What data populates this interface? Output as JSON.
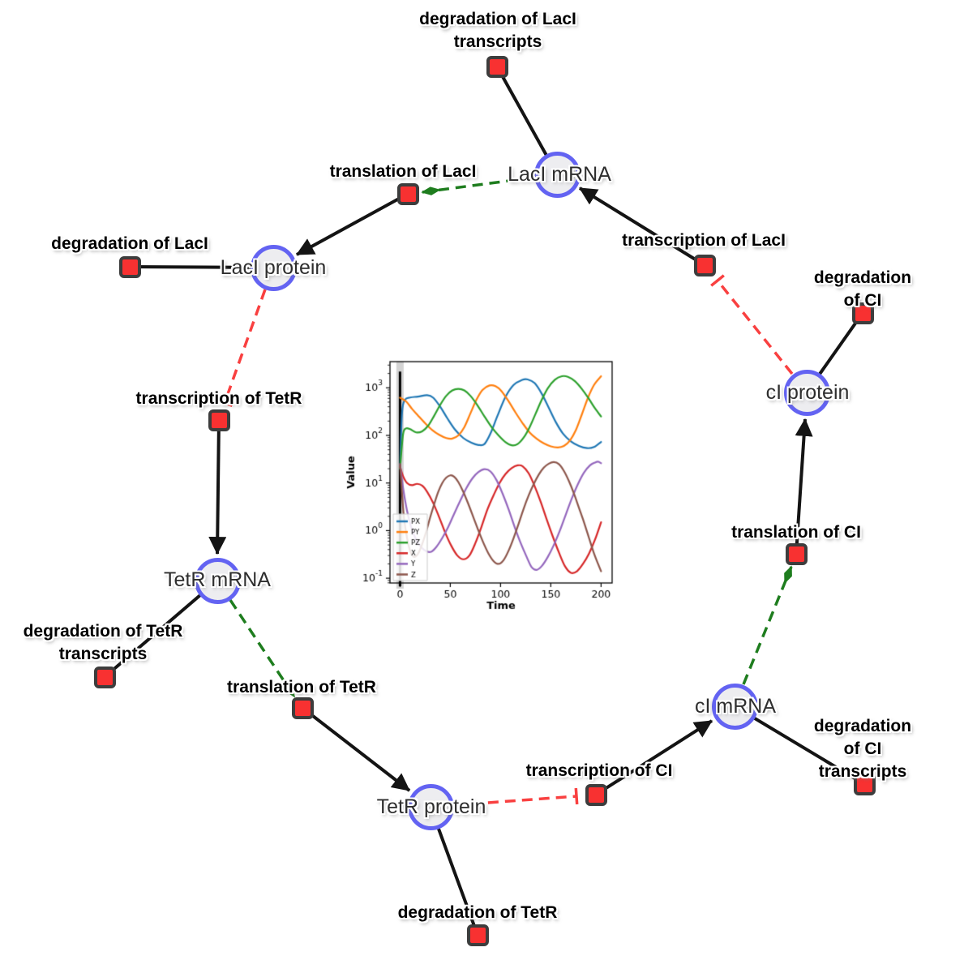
{
  "diagram": {
    "species": [
      {
        "label": "LacI mRNA"
      },
      {
        "label": "LacI protein"
      },
      {
        "label": "TetR mRNA"
      },
      {
        "label": "TetR protein"
      },
      {
        "label": "cI mRNA"
      },
      {
        "label": "cI protein"
      }
    ],
    "reactions": [
      {
        "label": "degradation of LacI\ntranscripts"
      },
      {
        "label": "translation of LacI"
      },
      {
        "label": "transcription of LacI"
      },
      {
        "label": "degradation of LacI"
      },
      {
        "label": "transcription of TetR"
      },
      {
        "label": "degradation of TetR\ntranscripts"
      },
      {
        "label": "translation of TetR"
      },
      {
        "label": "degradation of TetR"
      },
      {
        "label": "transcription of CI"
      },
      {
        "label": "degradation of CI\ntranscripts"
      },
      {
        "label": "translation of CI"
      },
      {
        "label": "degradation of CI"
      }
    ],
    "edges": [
      {
        "source": "LacI mRNA",
        "target": "degradation of LacI transcripts",
        "type": "consumption"
      },
      {
        "source": "LacI mRNA",
        "target": "translation of LacI",
        "type": "modifier"
      },
      {
        "source": "transcription of LacI",
        "target": "LacI mRNA",
        "type": "production"
      },
      {
        "source": "LacI protein",
        "target": "degradation of LacI",
        "type": "consumption"
      },
      {
        "source": "translation of LacI",
        "target": "LacI protein",
        "type": "production"
      },
      {
        "source": "LacI protein",
        "target": "transcription of TetR",
        "type": "inhibition"
      },
      {
        "source": "transcription of TetR",
        "target": "TetR mRNA",
        "type": "production"
      },
      {
        "source": "TetR mRNA",
        "target": "degradation of TetR transcripts",
        "type": "consumption"
      },
      {
        "source": "TetR mRNA",
        "target": "translation of TetR",
        "type": "modifier"
      },
      {
        "source": "translation of TetR",
        "target": "TetR protein",
        "type": "production"
      },
      {
        "source": "TetR protein",
        "target": "degradation of TetR",
        "type": "consumption"
      },
      {
        "source": "TetR protein",
        "target": "transcription of CI",
        "type": "inhibition"
      },
      {
        "source": "transcription of CI",
        "target": "cI mRNA",
        "type": "production"
      },
      {
        "source": "cI mRNA",
        "target": "degradation of CI transcripts",
        "type": "consumption"
      },
      {
        "source": "cI mRNA",
        "target": "translation of CI",
        "type": "modifier"
      },
      {
        "source": "translation of CI",
        "target": "cI protein",
        "type": "production"
      },
      {
        "source": "cI protein",
        "target": "degradation of CI",
        "type": "consumption"
      },
      {
        "source": "cI protein",
        "target": "transcription of LacI",
        "type": "inhibition"
      }
    ],
    "colors": {
      "species_border": "#6363f2",
      "species_fill": "#ededf0",
      "reaction_fill": "#f83131",
      "reaction_border": "#3d3d3d",
      "edge_black": "#141414",
      "edge_modifier_green": "#1e7d1e",
      "edge_inhibition_red": "#f94040"
    }
  },
  "chart_data": {
    "type": "line",
    "title": "",
    "xlabel": "Time",
    "ylabel": "Value",
    "y_scale": "log",
    "axes": {
      "xlim": [
        -10,
        211
      ],
      "ylim_log": [
        -1.1,
        3.55
      ],
      "x_ticks": [
        0,
        50,
        100,
        150,
        200
      ],
      "y_tick_exponents": [
        -1,
        0,
        1,
        2,
        3
      ]
    },
    "legend_position": "lower left",
    "vline": {
      "x": 0,
      "top_value": 2200
    },
    "series": [
      {
        "name": "PX",
        "color": "#1f77b4",
        "points": [
          [
            0,
            20
          ],
          [
            2,
            300
          ],
          [
            5,
            560
          ],
          [
            10,
            625
          ],
          [
            18,
            655
          ],
          [
            27,
            700
          ],
          [
            33,
            620
          ],
          [
            40,
            400
          ],
          [
            47,
            230
          ],
          [
            55,
            130
          ],
          [
            63,
            88
          ],
          [
            71,
            70
          ],
          [
            78,
            63
          ],
          [
            84,
            66
          ],
          [
            90,
            110
          ],
          [
            97,
            260
          ],
          [
            105,
            650
          ],
          [
            113,
            1150
          ],
          [
            121,
            1450
          ],
          [
            127,
            1500
          ],
          [
            134,
            1250
          ],
          [
            141,
            750
          ],
          [
            148,
            380
          ],
          [
            155,
            190
          ],
          [
            162,
            110
          ],
          [
            170,
            75
          ],
          [
            178,
            60
          ],
          [
            186,
            54
          ],
          [
            193,
            57
          ],
          [
            200,
            73
          ]
        ]
      },
      {
        "name": "PY",
        "color": "#ff7f0e",
        "points": [
          [
            0,
            620
          ],
          [
            6,
            520
          ],
          [
            12,
            360
          ],
          [
            18,
            260
          ],
          [
            25,
            180
          ],
          [
            32,
            130
          ],
          [
            39,
            103
          ],
          [
            46,
            88
          ],
          [
            52,
            86
          ],
          [
            58,
            100
          ],
          [
            64,
            150
          ],
          [
            70,
            290
          ],
          [
            76,
            560
          ],
          [
            82,
            900
          ],
          [
            89,
            1120
          ],
          [
            95,
            1080
          ],
          [
            101,
            850
          ],
          [
            108,
            520
          ],
          [
            115,
            300
          ],
          [
            122,
            180
          ],
          [
            129,
            115
          ],
          [
            136,
            85
          ],
          [
            143,
            68
          ],
          [
            150,
            59
          ],
          [
            157,
            56
          ],
          [
            163,
            60
          ],
          [
            169,
            78
          ],
          [
            175,
            130
          ],
          [
            181,
            280
          ],
          [
            187,
            620
          ],
          [
            193,
            1150
          ],
          [
            200,
            1750
          ]
        ]
      },
      {
        "name": "PZ",
        "color": "#2ca02c",
        "points": [
          [
            0,
            20
          ],
          [
            3,
            105
          ],
          [
            6,
            140
          ],
          [
            10,
            135
          ],
          [
            16,
            116
          ],
          [
            22,
            122
          ],
          [
            28,
            160
          ],
          [
            34,
            260
          ],
          [
            40,
            440
          ],
          [
            46,
            680
          ],
          [
            52,
            880
          ],
          [
            58,
            950
          ],
          [
            64,
            880
          ],
          [
            70,
            680
          ],
          [
            77,
            430
          ],
          [
            84,
            250
          ],
          [
            91,
            150
          ],
          [
            98,
            100
          ],
          [
            105,
            72
          ],
          [
            111,
            62
          ],
          [
            117,
            66
          ],
          [
            123,
            90
          ],
          [
            129,
            150
          ],
          [
            135,
            290
          ],
          [
            141,
            560
          ],
          [
            147,
            980
          ],
          [
            154,
            1480
          ],
          [
            161,
            1750
          ],
          [
            167,
            1700
          ],
          [
            174,
            1380
          ],
          [
            181,
            940
          ],
          [
            188,
            580
          ],
          [
            194,
            370
          ],
          [
            200,
            250
          ]
        ]
      },
      {
        "name": "X",
        "color": "#d62728",
        "points": [
          [
            0,
            22
          ],
          [
            3,
            14
          ],
          [
            7,
            10
          ],
          [
            12,
            9
          ],
          [
            17,
            9.6
          ],
          [
            22,
            8.8
          ],
          [
            27,
            6.5
          ],
          [
            33,
            3.8
          ],
          [
            39,
            1.9
          ],
          [
            45,
            0.9
          ],
          [
            51,
            0.48
          ],
          [
            57,
            0.3
          ],
          [
            63,
            0.25
          ],
          [
            69,
            0.3
          ],
          [
            75,
            0.55
          ],
          [
            81,
            1.2
          ],
          [
            87,
            2.8
          ],
          [
            93,
            5.5
          ],
          [
            99,
            10
          ],
          [
            105,
            15.5
          ],
          [
            111,
            20.5
          ],
          [
            117,
            23.5
          ],
          [
            122,
            22.5
          ],
          [
            128,
            16
          ],
          [
            134,
            8.5
          ],
          [
            140,
            4
          ],
          [
            146,
            1.7
          ],
          [
            152,
            0.75
          ],
          [
            158,
            0.35
          ],
          [
            164,
            0.18
          ],
          [
            170,
            0.13
          ],
          [
            176,
            0.14
          ],
          [
            182,
            0.2
          ],
          [
            188,
            0.33
          ],
          [
            194,
            0.65
          ],
          [
            200,
            1.5
          ]
        ]
      },
      {
        "name": "Y",
        "color": "#9467bd",
        "points": [
          [
            0,
            25
          ],
          [
            3,
            8
          ],
          [
            7,
            2.6
          ],
          [
            11,
            1.2
          ],
          [
            16,
            0.65
          ],
          [
            21,
            0.45
          ],
          [
            26,
            0.37
          ],
          [
            31,
            0.36
          ],
          [
            36,
            0.45
          ],
          [
            42,
            0.7
          ],
          [
            48,
            1.2
          ],
          [
            54,
            2.3
          ],
          [
            60,
            4.3
          ],
          [
            66,
            7.8
          ],
          [
            72,
            12.5
          ],
          [
            78,
            17
          ],
          [
            84,
            19.5
          ],
          [
            90,
            17.5
          ],
          [
            96,
            11.5
          ],
          [
            102,
            6
          ],
          [
            108,
            2.8
          ],
          [
            114,
            1.2
          ],
          [
            120,
            0.55
          ],
          [
            126,
            0.28
          ],
          [
            131,
            0.17
          ],
          [
            136,
            0.15
          ],
          [
            141,
            0.18
          ],
          [
            147,
            0.28
          ],
          [
            153,
            0.5
          ],
          [
            159,
            1
          ],
          [
            165,
            2.2
          ],
          [
            171,
            4.8
          ],
          [
            177,
            9.5
          ],
          [
            183,
            16.5
          ],
          [
            189,
            23.5
          ],
          [
            194,
            27
          ],
          [
            197,
            28
          ],
          [
            200,
            26
          ]
        ]
      },
      {
        "name": "Z",
        "color": "#8c564b",
        "points": [
          [
            0,
            25
          ],
          [
            2,
            6
          ],
          [
            4,
            1.8
          ],
          [
            7,
            0.7
          ],
          [
            10,
            0.38
          ],
          [
            14,
            0.28
          ],
          [
            18,
            0.33
          ],
          [
            22,
            0.52
          ],
          [
            26,
            0.95
          ],
          [
            30,
            1.9
          ],
          [
            34,
            3.6
          ],
          [
            38,
            6.5
          ],
          [
            42,
            10
          ],
          [
            46,
            13
          ],
          [
            50,
            14.5
          ],
          [
            54,
            13.5
          ],
          [
            58,
            10.5
          ],
          [
            63,
            6.5
          ],
          [
            68,
            3.6
          ],
          [
            73,
            1.9
          ],
          [
            78,
            1
          ],
          [
            83,
            0.55
          ],
          [
            88,
            0.33
          ],
          [
            93,
            0.23
          ],
          [
            98,
            0.2
          ],
          [
            103,
            0.24
          ],
          [
            108,
            0.38
          ],
          [
            113,
            0.7
          ],
          [
            118,
            1.4
          ],
          [
            123,
            2.9
          ],
          [
            128,
            5.5
          ],
          [
            133,
            9.5
          ],
          [
            138,
            15
          ],
          [
            143,
            21
          ],
          [
            148,
            25.5
          ],
          [
            153,
            27.5
          ],
          [
            158,
            25
          ],
          [
            163,
            18
          ],
          [
            168,
            11
          ],
          [
            173,
            6
          ],
          [
            178,
            3
          ],
          [
            183,
            1.5
          ],
          [
            188,
            0.7
          ],
          [
            193,
            0.33
          ],
          [
            197,
            0.2
          ],
          [
            200,
            0.14
          ]
        ]
      }
    ]
  }
}
